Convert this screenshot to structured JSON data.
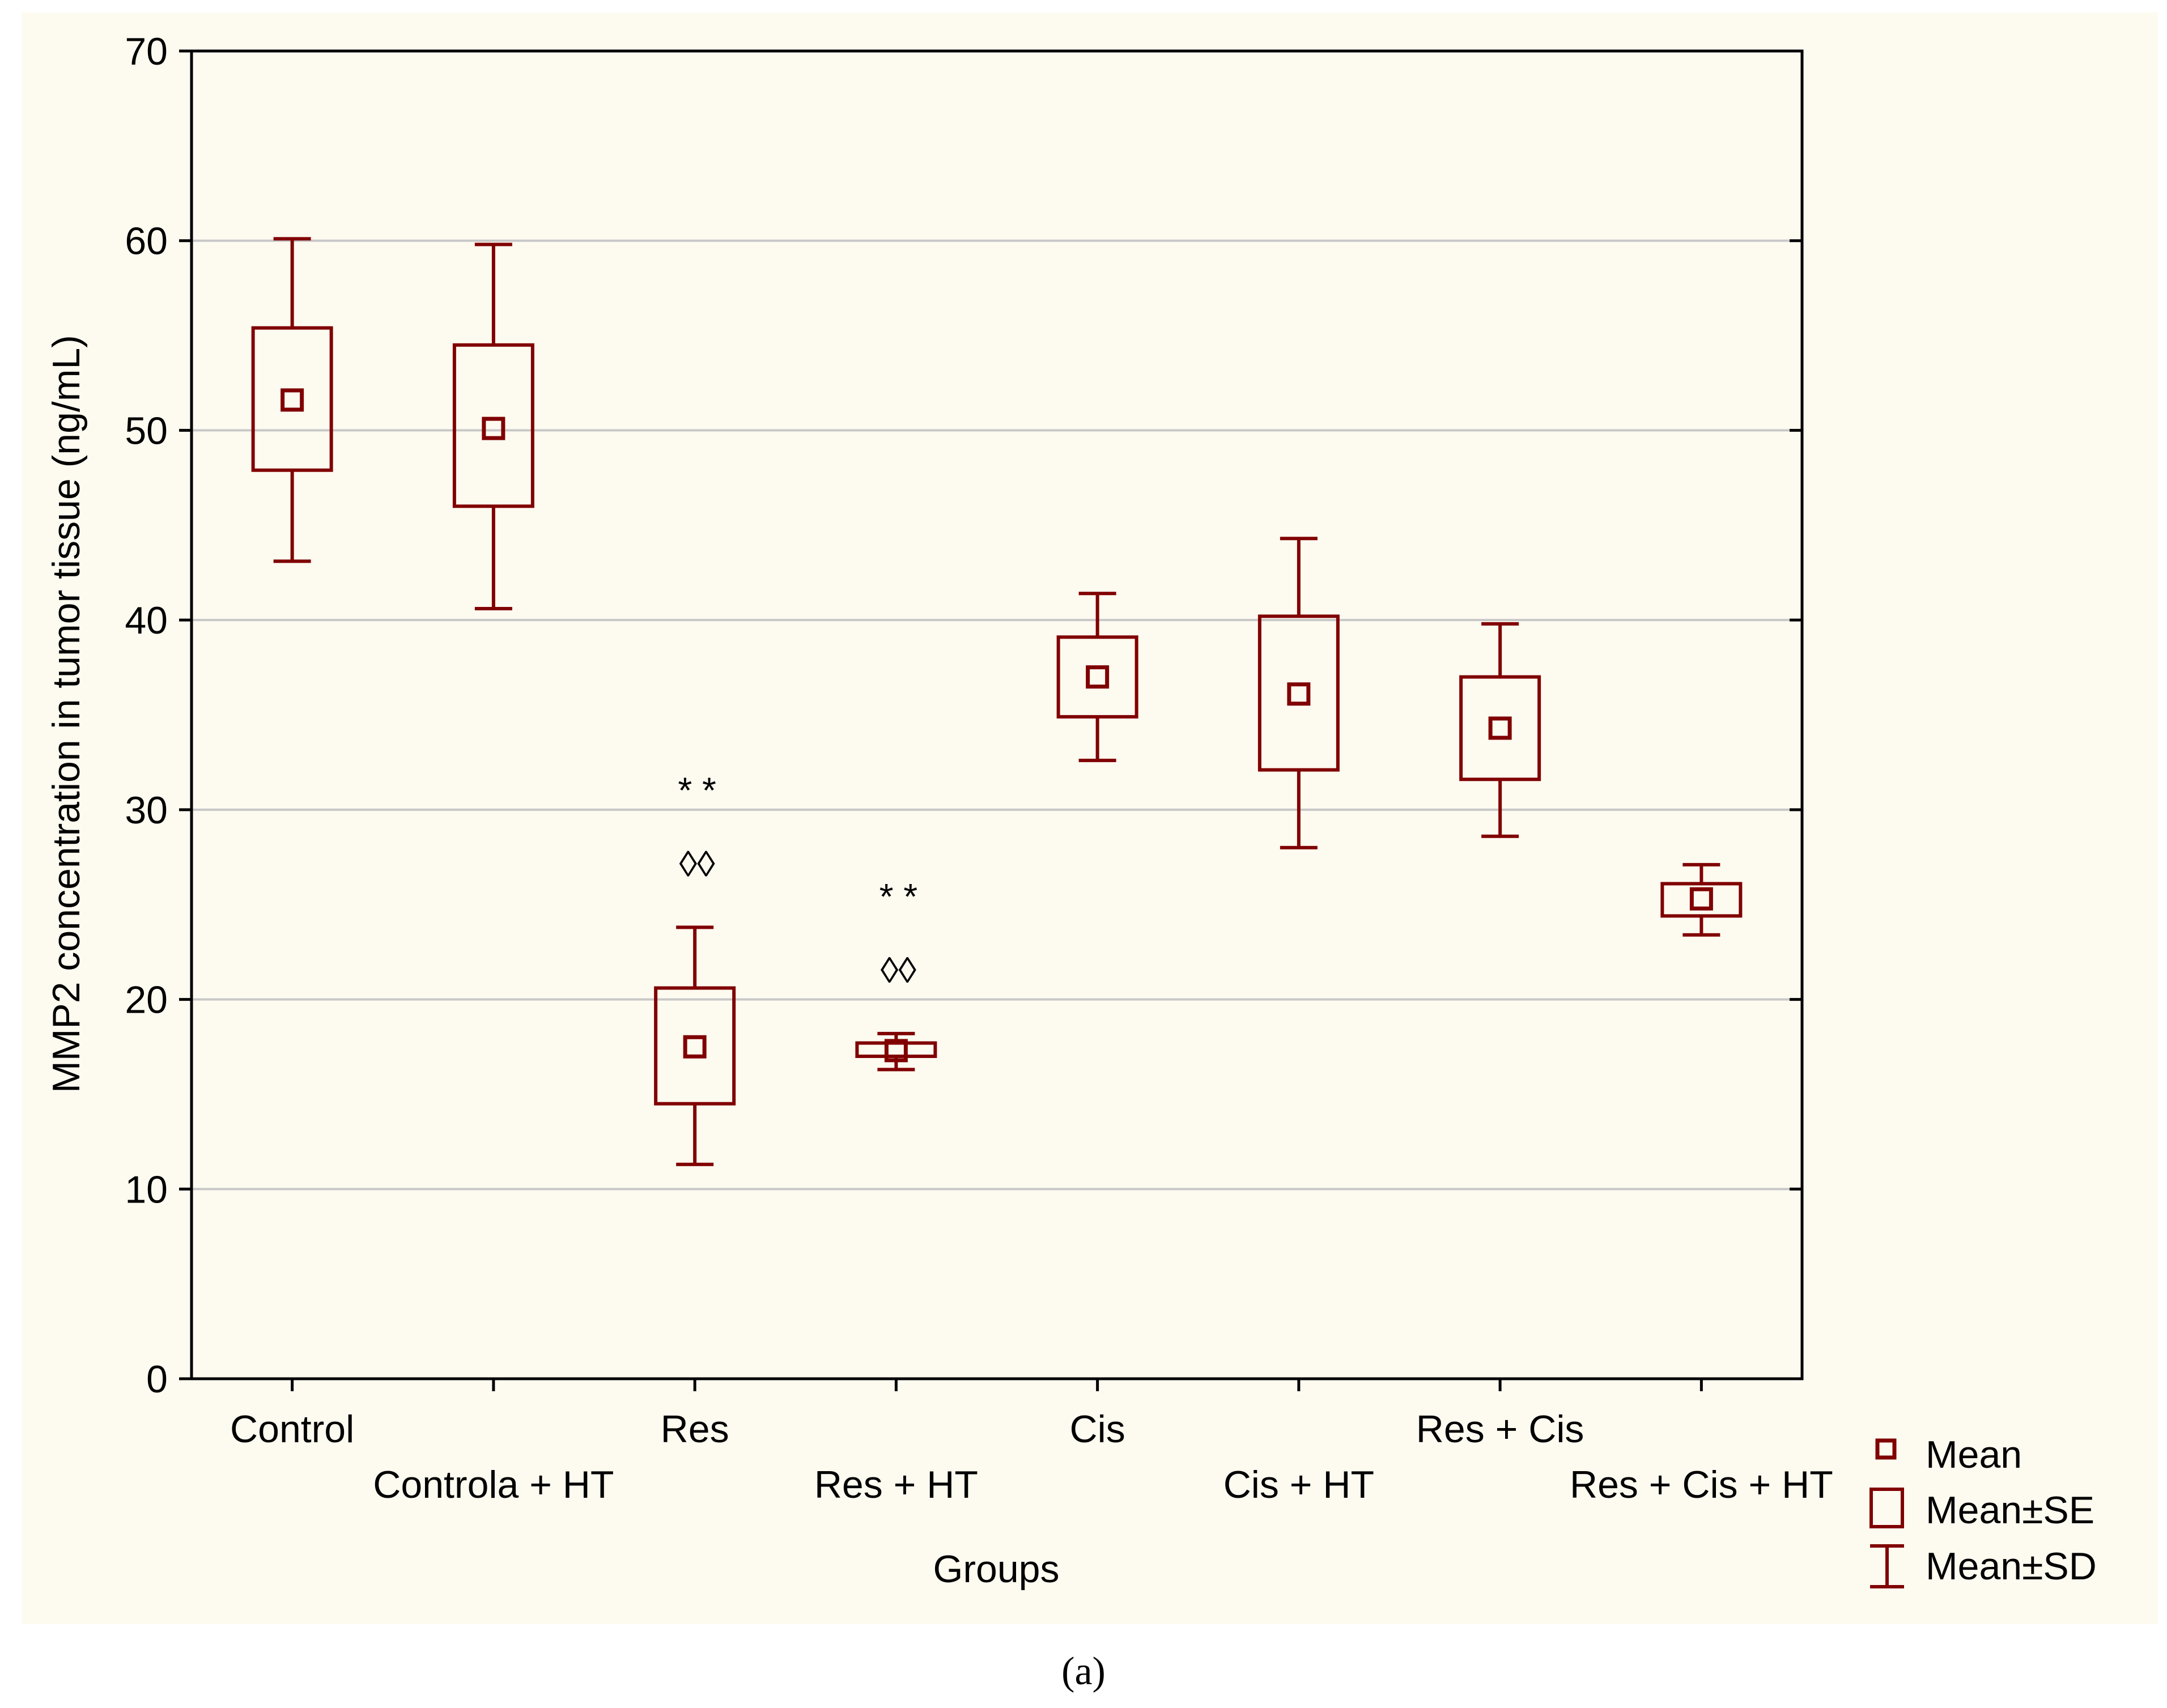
{
  "chart_data": {
    "type": "box",
    "ylabel": "MMP2 concentration in tumor tissue (ng/mL)",
    "xlabel": "Groups",
    "ylim": [
      0,
      70
    ],
    "yticks": [
      0,
      10,
      20,
      30,
      40,
      50,
      60,
      70
    ],
    "grid": true,
    "categories": [
      "Control",
      "Controla + HT",
      "Res",
      "Res + HT",
      "Cis",
      "Cis + HT",
      "Res + Cis",
      "Res + Cis + HT"
    ],
    "mean": [
      51.6,
      50.1,
      17.5,
      17.3,
      37.0,
      36.1,
      34.3,
      25.3
    ],
    "se_low": [
      47.9,
      46.0,
      14.5,
      17.0,
      34.9,
      32.1,
      31.6,
      24.4
    ],
    "se_high": [
      55.4,
      54.5,
      20.6,
      17.7,
      39.1,
      40.2,
      37.0,
      26.1
    ],
    "sd_low": [
      43.1,
      40.6,
      11.3,
      16.3,
      32.6,
      28.0,
      28.6,
      23.4
    ],
    "sd_high": [
      60.1,
      59.8,
      23.8,
      18.2,
      41.4,
      44.3,
      39.8,
      27.1
    ],
    "annotations": [
      {
        "category": "Res",
        "lines": [
          "* *",
          "◊◊"
        ]
      },
      {
        "category": "Res + HT",
        "lines": [
          "* *",
          "◊◊"
        ]
      }
    ],
    "legend": [
      "Mean",
      "Mean±SE",
      "Mean±SD"
    ],
    "caption": "(a)"
  }
}
